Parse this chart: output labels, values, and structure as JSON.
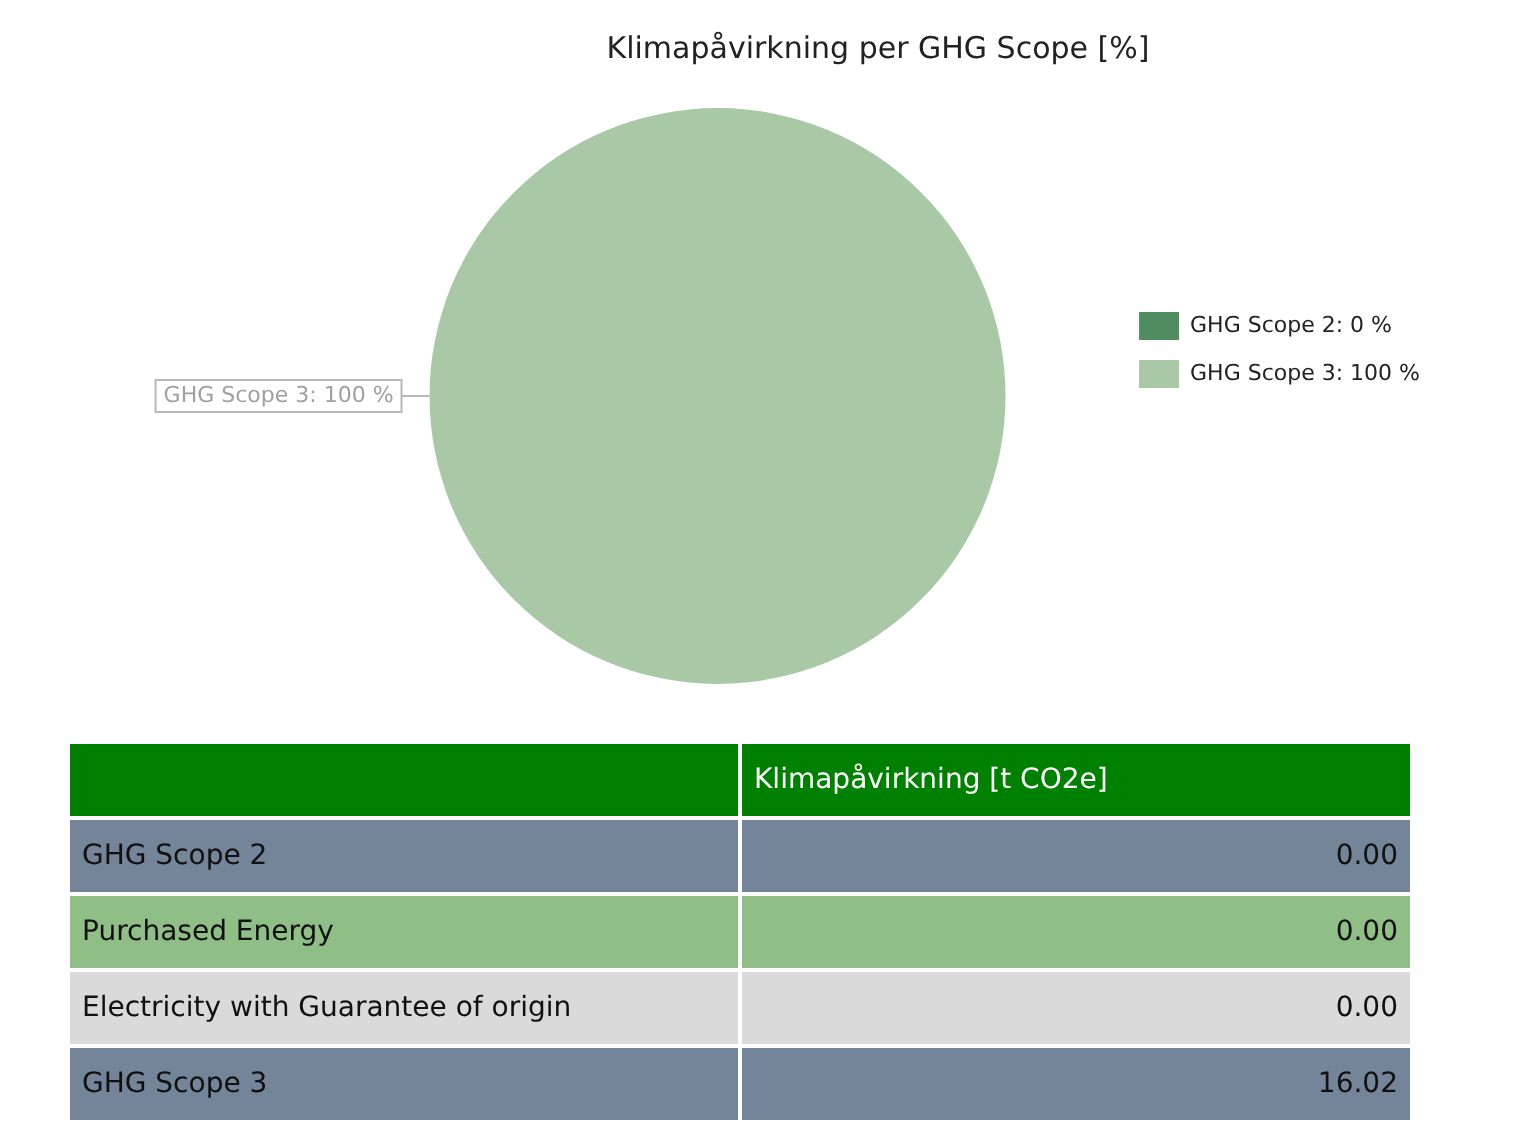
{
  "chart_data": {
    "type": "pie",
    "title": "Klimapåvirkning per GHG Scope [%]",
    "categories": [
      "GHG Scope 2: 0 %",
      "GHG Scope 3: 100 %"
    ],
    "values": [
      0,
      100
    ],
    "colors": [
      "#4f8c5f",
      "#a8c8a6"
    ],
    "value_labels": [
      null,
      "GHG Scope 3: 100 %"
    ],
    "legend": "right",
    "annotations": [
      "Klimapåvirkning [t CO2e]",
      "GHG Scope 2",
      "0.00",
      "Purchased Energy",
      "0.00",
      "Electricity with Guarantee of origin",
      "0.00",
      "GHG Scope 3",
      "16.02"
    ]
  }
}
